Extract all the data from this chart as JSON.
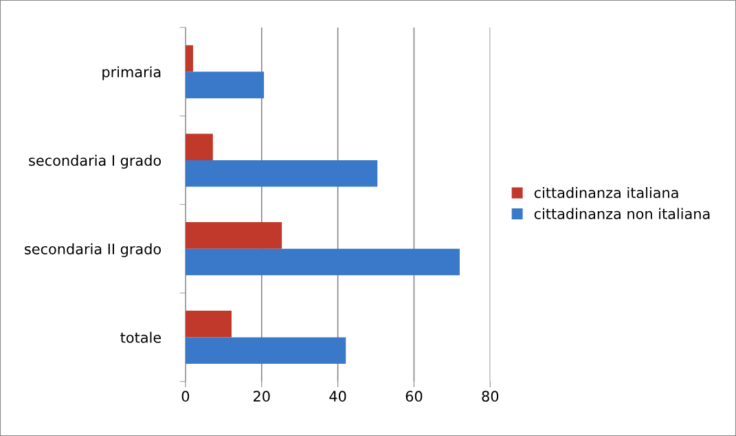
{
  "chart_data": {
    "type": "bar",
    "orientation": "horizontal",
    "categories": [
      "primaria",
      "secondaria I grado",
      "secondaria II grado",
      "totale"
    ],
    "series": [
      {
        "name": "cittadinanza italiana",
        "color": "#c0392b",
        "values": [
          2.0,
          7.2,
          25.3,
          12.1
        ]
      },
      {
        "name": "cittadinanza non italiana",
        "color": "#3a78c9",
        "values": [
          20.6,
          50.4,
          72.0,
          42.1
        ]
      }
    ],
    "xlim": [
      0,
      80
    ],
    "xticks": [
      0,
      20,
      40,
      60,
      80
    ],
    "grid": "x",
    "legend": "right"
  }
}
